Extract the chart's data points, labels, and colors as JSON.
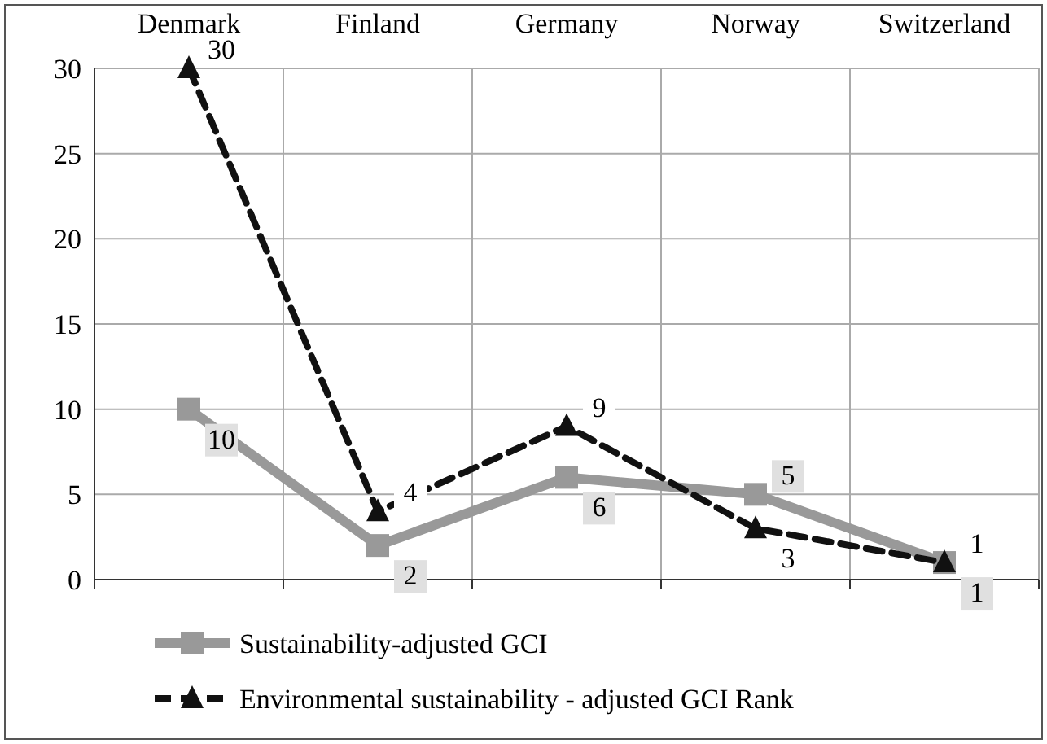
{
  "chart_data": {
    "type": "line",
    "categories": [
      "Denmark",
      "Finland",
      "Germany",
      "Norway",
      "Switzerland"
    ],
    "series": [
      {
        "name": "Sustainability-adjusted GCI",
        "color": "#999999",
        "values": [
          10,
          2,
          6,
          5,
          1
        ],
        "marker": "square",
        "line_style": "solid"
      },
      {
        "name": "Environmental sustainability - adjusted GCI Rank",
        "color": "#111111",
        "values": [
          30,
          4,
          9,
          3,
          1
        ],
        "marker": "triangle",
        "line_style": "dashed"
      }
    ],
    "ylim": [
      0,
      30
    ],
    "yticks": [
      0,
      5,
      10,
      15,
      20,
      25,
      30
    ],
    "grid": true,
    "legend": "bottom",
    "data_labels": true
  }
}
